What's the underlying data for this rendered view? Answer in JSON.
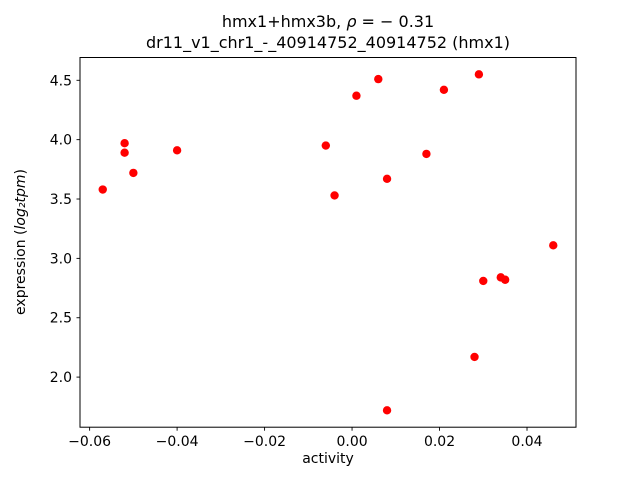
{
  "chart_data": {
    "type": "scatter",
    "title_parts": {
      "prefix": "hmx1+hmx3b, ",
      "math": "ρ",
      "suffix": " = − 0.31"
    },
    "subtitle": "dr11_v1_chr1_-_40914752_40914752 (hmx1)",
    "xlabel": "activity",
    "ylabel_parts": {
      "prefix": "expression (",
      "math": "log₂tpm",
      "suffix": ")"
    },
    "marker_color": "#ff0000",
    "legend": "none",
    "grid": false,
    "xlim": [
      -0.0622,
      0.0512
    ],
    "ylim": [
      1.578,
      4.692
    ],
    "xticks": {
      "values": [
        -0.06,
        -0.04,
        -0.02,
        0.0,
        0.02,
        0.04
      ],
      "labels": [
        "−0.06",
        "−0.04",
        "−0.02",
        "0.00",
        "0.02",
        "0.04"
      ]
    },
    "yticks": {
      "values": [
        2.0,
        2.5,
        3.0,
        3.5,
        4.0,
        4.5
      ],
      "labels": [
        "2.0",
        "2.5",
        "3.0",
        "3.5",
        "4.0",
        "4.5"
      ]
    },
    "points": [
      [
        -0.057,
        3.58
      ],
      [
        -0.052,
        3.97
      ],
      [
        -0.052,
        3.89
      ],
      [
        -0.05,
        3.72
      ],
      [
        -0.04,
        3.91
      ],
      [
        -0.006,
        3.95
      ],
      [
        -0.004,
        3.53
      ],
      [
        0.001,
        4.37
      ],
      [
        0.006,
        4.51
      ],
      [
        0.008,
        3.67
      ],
      [
        0.008,
        1.72
      ],
      [
        0.017,
        3.88
      ],
      [
        0.021,
        4.42
      ],
      [
        0.028,
        2.17
      ],
      [
        0.029,
        4.55
      ],
      [
        0.03,
        2.81
      ],
      [
        0.034,
        2.84
      ],
      [
        0.035,
        2.82
      ],
      [
        0.046,
        3.11
      ]
    ]
  }
}
